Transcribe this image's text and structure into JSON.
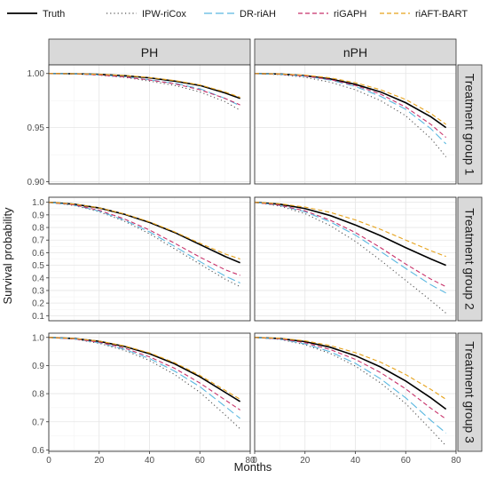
{
  "chart_data": {
    "type": "line",
    "xlabel": "Months",
    "ylabel": "Survival probability",
    "xlim": [
      0,
      80
    ],
    "x_ticks": [
      0,
      20,
      40,
      60,
      80
    ],
    "columns": [
      "PH",
      "nPH"
    ],
    "rows": [
      "Treatment group 1",
      "Treatment group 2",
      "Treatment group 3"
    ],
    "legend_position": "top",
    "series_styles": [
      {
        "name": "Truth",
        "color": "#000000",
        "dash": "solid"
      },
      {
        "name": "IPW-riCox",
        "color": "#555555",
        "dash": "dotted"
      },
      {
        "name": "DR-riAH",
        "color": "#5bb8e0",
        "dash": "longdash"
      },
      {
        "name": "riGAPH",
        "color": "#c8326a",
        "dash": "dashed"
      },
      {
        "name": "riAFT-BART",
        "color": "#e6a21a",
        "dash": "dashed"
      }
    ],
    "panels": [
      {
        "row": "Treatment group 1",
        "col": "PH",
        "ylim": [
          0.898,
          1.008
        ],
        "y_ticks": [
          0.9,
          0.95,
          1.0
        ],
        "y_tick_labels": [
          "0.90",
          "0.95",
          "1.00"
        ],
        "x": [
          0,
          10,
          20,
          30,
          40,
          50,
          60,
          70,
          76
        ],
        "series": [
          {
            "name": "Truth",
            "values": [
              1.0,
              0.9998,
              0.9992,
              0.998,
              0.996,
              0.993,
              0.989,
              0.982,
              0.977
            ]
          },
          {
            "name": "IPW-riCox",
            "values": [
              1.0,
              0.9996,
              0.9985,
              0.9965,
              0.993,
              0.989,
              0.983,
              0.974,
              0.966
            ]
          },
          {
            "name": "DR-riAH",
            "values": [
              1.0,
              0.9997,
              0.9988,
              0.997,
              0.9942,
              0.991,
              0.986,
              0.977,
              0.97
            ]
          },
          {
            "name": "riGAPH",
            "values": [
              1.0,
              0.9997,
              0.9987,
              0.9968,
              0.994,
              0.9905,
              0.985,
              0.977,
              0.971
            ]
          },
          {
            "name": "riAFT-BART",
            "values": [
              1.0,
              0.9998,
              0.9993,
              0.9982,
              0.9963,
              0.9935,
              0.9895,
              0.983,
              0.978
            ]
          }
        ]
      },
      {
        "row": "Treatment group 1",
        "col": "nPH",
        "ylim": [
          0.898,
          1.008
        ],
        "y_ticks": [
          0.9,
          0.95,
          1.0
        ],
        "y_tick_labels": [
          "0.90",
          "0.95",
          "1.00"
        ],
        "x": [
          0,
          10,
          20,
          30,
          40,
          50,
          60,
          70,
          76
        ],
        "series": [
          {
            "name": "Truth",
            "values": [
              1.0,
              0.9995,
              0.998,
              0.995,
              0.99,
              0.983,
              0.973,
              0.96,
              0.95
            ]
          },
          {
            "name": "IPW-riCox",
            "values": [
              1.0,
              0.999,
              0.9965,
              0.992,
              0.985,
              0.975,
              0.961,
              0.94,
              0.923
            ]
          },
          {
            "name": "DR-riAH",
            "values": [
              1.0,
              0.9993,
              0.9975,
              0.994,
              0.988,
              0.979,
              0.967,
              0.949,
              0.935
            ]
          },
          {
            "name": "riGAPH",
            "values": [
              1.0,
              0.9994,
              0.9977,
              0.9945,
              0.989,
              0.981,
              0.969,
              0.953,
              0.941
            ]
          },
          {
            "name": "riAFT-BART",
            "values": [
              1.0,
              0.9996,
              0.9985,
              0.996,
              0.9915,
              0.985,
              0.976,
              0.963,
              0.953
            ]
          }
        ]
      },
      {
        "row": "Treatment group 2",
        "col": "PH",
        "ylim": [
          0.06,
          1.04
        ],
        "y_ticks": [
          0.1,
          0.2,
          0.3,
          0.4,
          0.5,
          0.6,
          0.7,
          0.8,
          0.9,
          1.0
        ],
        "y_tick_labels": [
          "0.1",
          "0.2",
          "0.3",
          "0.4",
          "0.5",
          "0.6",
          "0.7",
          "0.8",
          "0.9",
          "1.0"
        ],
        "x": [
          0,
          10,
          20,
          30,
          40,
          50,
          60,
          70,
          76
        ],
        "series": [
          {
            "name": "Truth",
            "values": [
              1.0,
              0.985,
              0.955,
              0.905,
              0.84,
              0.76,
              0.665,
              0.57,
              0.52
            ]
          },
          {
            "name": "IPW-riCox",
            "values": [
              1.0,
              0.975,
              0.925,
              0.85,
              0.75,
              0.63,
              0.51,
              0.39,
              0.33
            ]
          },
          {
            "name": "DR-riAH",
            "values": [
              1.0,
              0.978,
              0.93,
              0.858,
              0.765,
              0.65,
              0.53,
              0.415,
              0.36
            ]
          },
          {
            "name": "riGAPH",
            "values": [
              1.0,
              0.98,
              0.937,
              0.868,
              0.78,
              0.675,
              0.565,
              0.465,
              0.42
            ]
          },
          {
            "name": "riAFT-BART",
            "values": [
              1.0,
              0.986,
              0.956,
              0.908,
              0.845,
              0.765,
              0.675,
              0.59,
              0.55
            ]
          }
        ]
      },
      {
        "row": "Treatment group 2",
        "col": "nPH",
        "ylim": [
          0.06,
          1.04
        ],
        "y_ticks": [
          0.1,
          0.2,
          0.3,
          0.4,
          0.5,
          0.6,
          0.7,
          0.8,
          0.9,
          1.0
        ],
        "y_tick_labels": [
          "0.1",
          "0.2",
          "0.3",
          "0.4",
          "0.5",
          "0.6",
          "0.7",
          "0.8",
          "0.9",
          "1.0"
        ],
        "x": [
          0,
          10,
          20,
          30,
          40,
          50,
          60,
          70,
          76
        ],
        "series": [
          {
            "name": "Truth",
            "values": [
              1.0,
              0.985,
              0.95,
              0.895,
              0.82,
              0.735,
              0.64,
              0.55,
              0.5
            ]
          },
          {
            "name": "IPW-riCox",
            "values": [
              1.0,
              0.97,
              0.91,
              0.815,
              0.69,
              0.54,
              0.38,
              0.22,
              0.12
            ]
          },
          {
            "name": "DR-riAH",
            "values": [
              1.0,
              0.975,
              0.925,
              0.845,
              0.74,
              0.61,
              0.475,
              0.345,
              0.28
            ]
          },
          {
            "name": "riGAPH",
            "values": [
              1.0,
              0.977,
              0.932,
              0.858,
              0.76,
              0.64,
              0.51,
              0.39,
              0.33
            ]
          },
          {
            "name": "riAFT-BART",
            "values": [
              1.0,
              0.988,
              0.962,
              0.92,
              0.86,
              0.785,
              0.7,
              0.615,
              0.57
            ]
          }
        ]
      },
      {
        "row": "Treatment group 3",
        "col": "PH",
        "ylim": [
          0.595,
          1.015
        ],
        "y_ticks": [
          0.6,
          0.7,
          0.8,
          0.9,
          1.0
        ],
        "y_tick_labels": [
          "0.6",
          "0.7",
          "0.8",
          "0.9",
          "1.0"
        ],
        "x": [
          0,
          10,
          20,
          30,
          40,
          50,
          60,
          70,
          76
        ],
        "series": [
          {
            "name": "Truth",
            "values": [
              1.0,
              0.996,
              0.986,
              0.968,
              0.942,
              0.906,
              0.86,
              0.805,
              0.772
            ]
          },
          {
            "name": "IPW-riCox",
            "values": [
              1.0,
              0.994,
              0.979,
              0.954,
              0.918,
              0.868,
              0.805,
              0.725,
              0.675
            ]
          },
          {
            "name": "DR-riAH",
            "values": [
              1.0,
              0.995,
              0.981,
              0.958,
              0.925,
              0.88,
              0.825,
              0.755,
              0.712
            ]
          },
          {
            "name": "riGAPH",
            "values": [
              1.0,
              0.995,
              0.983,
              0.962,
              0.931,
              0.89,
              0.838,
              0.778,
              0.742
            ]
          },
          {
            "name": "riAFT-BART",
            "values": [
              1.0,
              0.9965,
              0.987,
              0.97,
              0.945,
              0.91,
              0.865,
              0.812,
              0.78
            ]
          }
        ]
      },
      {
        "row": "Treatment group 3",
        "col": "nPH",
        "ylim": [
          0.595,
          1.015
        ],
        "y_ticks": [
          0.6,
          0.7,
          0.8,
          0.9,
          1.0
        ],
        "y_tick_labels": [
          "0.6",
          "0.7",
          "0.8",
          "0.9",
          "1.0"
        ],
        "x": [
          0,
          10,
          20,
          30,
          40,
          50,
          60,
          70,
          76
        ],
        "series": [
          {
            "name": "Truth",
            "values": [
              1.0,
              0.996,
              0.985,
              0.965,
              0.935,
              0.895,
              0.845,
              0.785,
              0.745
            ]
          },
          {
            "name": "IPW-riCox",
            "values": [
              1.0,
              0.993,
              0.974,
              0.943,
              0.898,
              0.838,
              0.765,
              0.672,
              0.615
            ]
          },
          {
            "name": "DR-riAH",
            "values": [
              1.0,
              0.994,
              0.977,
              0.949,
              0.908,
              0.853,
              0.785,
              0.705,
              0.66
            ]
          },
          {
            "name": "riGAPH",
            "values": [
              1.0,
              0.995,
              0.981,
              0.957,
              0.922,
              0.875,
              0.817,
              0.748,
              0.71
            ]
          },
          {
            "name": "riAFT-BART",
            "values": [
              1.0,
              0.997,
              0.988,
              0.971,
              0.946,
              0.912,
              0.868,
              0.815,
              0.78
            ]
          }
        ]
      }
    ]
  }
}
